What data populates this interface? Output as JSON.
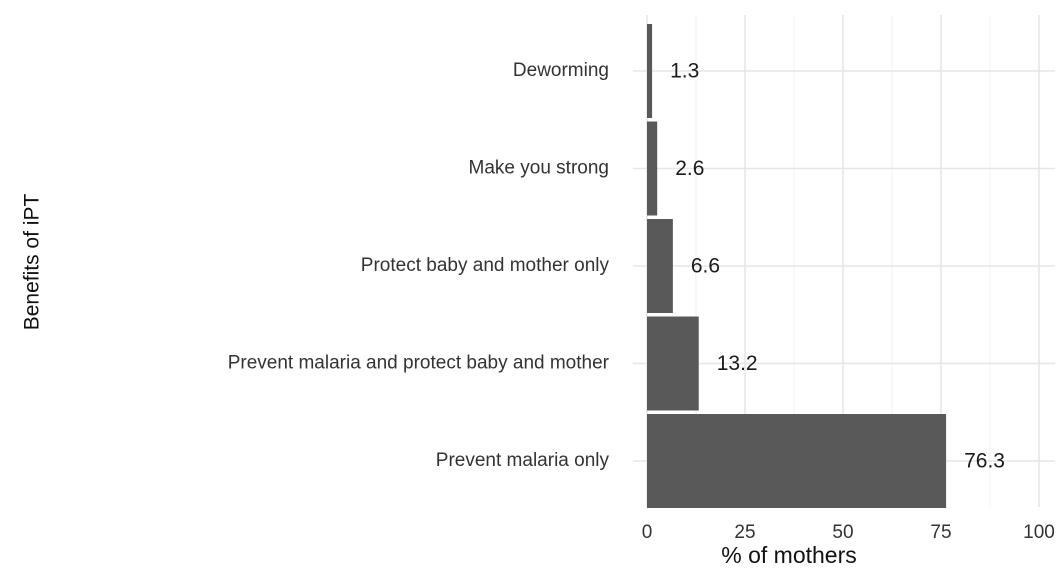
{
  "chart_data": {
    "type": "bar",
    "orientation": "horizontal",
    "title": "",
    "xlabel": "% of mothers",
    "ylabel": "Benefits of iPT",
    "categories": [
      "Deworming",
      "Make you strong",
      "Protect baby and mother only",
      "Prevent malaria and protect baby and mother",
      "Prevent malaria only"
    ],
    "values": [
      1.3,
      2.6,
      6.6,
      13.2,
      76.3
    ],
    "data_labels": [
      "1.3",
      "2.6",
      "6.6",
      "13.2",
      "76.3"
    ],
    "xlim": [
      0,
      100
    ],
    "x_ticks": [
      0,
      25,
      50,
      75,
      100
    ],
    "x_tick_labels": [
      "0",
      "25",
      "50",
      "75",
      "100"
    ],
    "grid": true,
    "legend": "none",
    "colors": {
      "bar": "#595959",
      "grid_major": "#e6e6e6",
      "grid_minor": "#f2f2f2",
      "text": "#333333",
      "axis_title": "#111111"
    }
  }
}
